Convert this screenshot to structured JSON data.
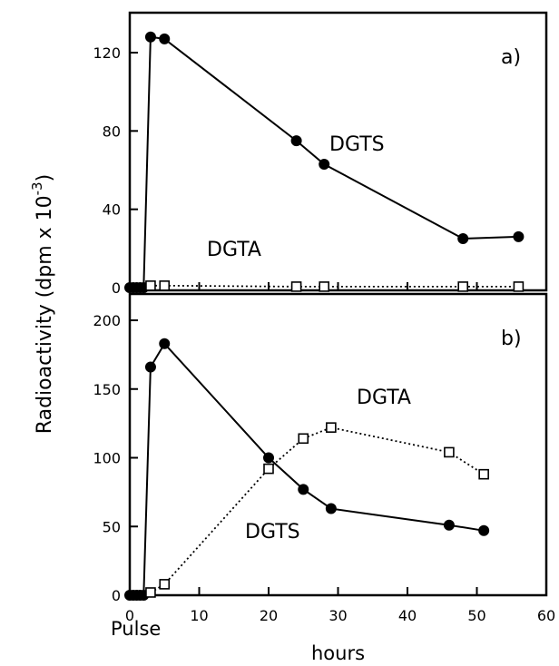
{
  "chart_data": [
    {
      "type": "line",
      "panel": "a)",
      "ylim": [
        0,
        135
      ],
      "yticks": [
        0,
        40,
        80,
        120
      ],
      "xlim": [
        0,
        60
      ],
      "series": [
        {
          "name": "DGTS",
          "marker": "filled-circle",
          "line": "solid",
          "points": [
            [
              0,
              0
            ],
            [
              0.5,
              0
            ],
            [
              1,
              0
            ],
            [
              1.5,
              0
            ],
            [
              2,
              0
            ],
            [
              3,
              128
            ],
            [
              5,
              127
            ],
            [
              24,
              75
            ],
            [
              28,
              63
            ],
            [
              48,
              25
            ],
            [
              56,
              26
            ]
          ]
        },
        {
          "name": "DGTA",
          "marker": "open-square",
          "line": "dotted",
          "points": [
            [
              3,
              1
            ],
            [
              5,
              1
            ],
            [
              24,
              0.5
            ],
            [
              28,
              0.5
            ],
            [
              48,
              0.5
            ],
            [
              56,
              0.5
            ]
          ]
        }
      ]
    },
    {
      "type": "line",
      "panel": "b)",
      "ylim": [
        0,
        200
      ],
      "yticks": [
        0,
        50,
        100,
        150,
        200
      ],
      "xlim": [
        0,
        60
      ],
      "xticks": [
        0,
        10,
        20,
        30,
        40,
        50,
        60
      ],
      "series": [
        {
          "name": "DGTS",
          "marker": "filled-circle",
          "line": "solid",
          "points": [
            [
              0,
              0
            ],
            [
              0.5,
              0
            ],
            [
              1,
              0
            ],
            [
              1.5,
              0
            ],
            [
              2,
              0
            ],
            [
              3,
              166
            ],
            [
              5,
              183
            ],
            [
              20,
              100
            ],
            [
              25,
              77
            ],
            [
              29,
              63
            ],
            [
              46,
              51
            ],
            [
              51,
              47
            ]
          ]
        },
        {
          "name": "DGTA",
          "marker": "open-square",
          "line": "dotted",
          "points": [
            [
              3,
              2
            ],
            [
              5,
              8
            ],
            [
              20,
              92
            ],
            [
              25,
              114
            ],
            [
              29,
              122
            ],
            [
              46,
              104
            ],
            [
              51,
              88
            ]
          ]
        }
      ]
    }
  ],
  "labels": {
    "ylabel": "Radioactivity (dpm x 10",
    "ylabel_exp": "-3",
    "ylabel_close": ")",
    "xlabel": "hours",
    "pulse": "Pulse",
    "a_dgts": "DGTS",
    "a_dgta": "DGTA",
    "b_dgta": "DGTA",
    "b_dgts": "DGTS"
  }
}
